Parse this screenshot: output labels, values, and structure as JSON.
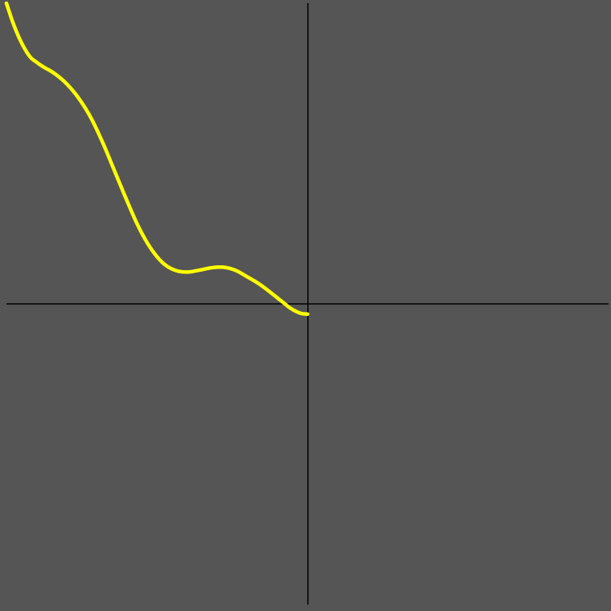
{
  "colors": {
    "background": "#555555",
    "axis": "#000000",
    "curve": "#ffff00"
  },
  "chart_data": {
    "type": "scatter",
    "title": "",
    "xlabel": "",
    "ylabel": "",
    "grid": false,
    "legend": "none",
    "xlim": [
      -5,
      5
    ],
    "ylim": [
      -5,
      5
    ],
    "series": [
      {
        "name": "curve",
        "x": [
          -5.0,
          -4.9,
          -4.8,
          -4.7,
          -4.6,
          -4.5,
          -4.4,
          -4.2,
          -4.0,
          -3.8,
          -3.6,
          -3.4,
          -3.2,
          -3.0,
          -2.8,
          -2.6,
          -2.4,
          -2.2,
          -2.0,
          -1.8,
          -1.6,
          -1.4,
          -1.2,
          -1.0,
          -0.8,
          -0.6,
          -0.5,
          -0.4,
          -0.3,
          -0.2,
          -0.1,
          0.0
        ],
        "y": [
          5.0,
          4.7,
          4.45,
          4.25,
          4.1,
          4.02,
          3.95,
          3.83,
          3.66,
          3.42,
          3.1,
          2.68,
          2.2,
          1.72,
          1.27,
          0.92,
          0.68,
          0.56,
          0.53,
          0.56,
          0.6,
          0.61,
          0.56,
          0.45,
          0.33,
          0.18,
          0.1,
          0.02,
          -0.06,
          -0.12,
          -0.16,
          -0.17
        ]
      }
    ]
  }
}
